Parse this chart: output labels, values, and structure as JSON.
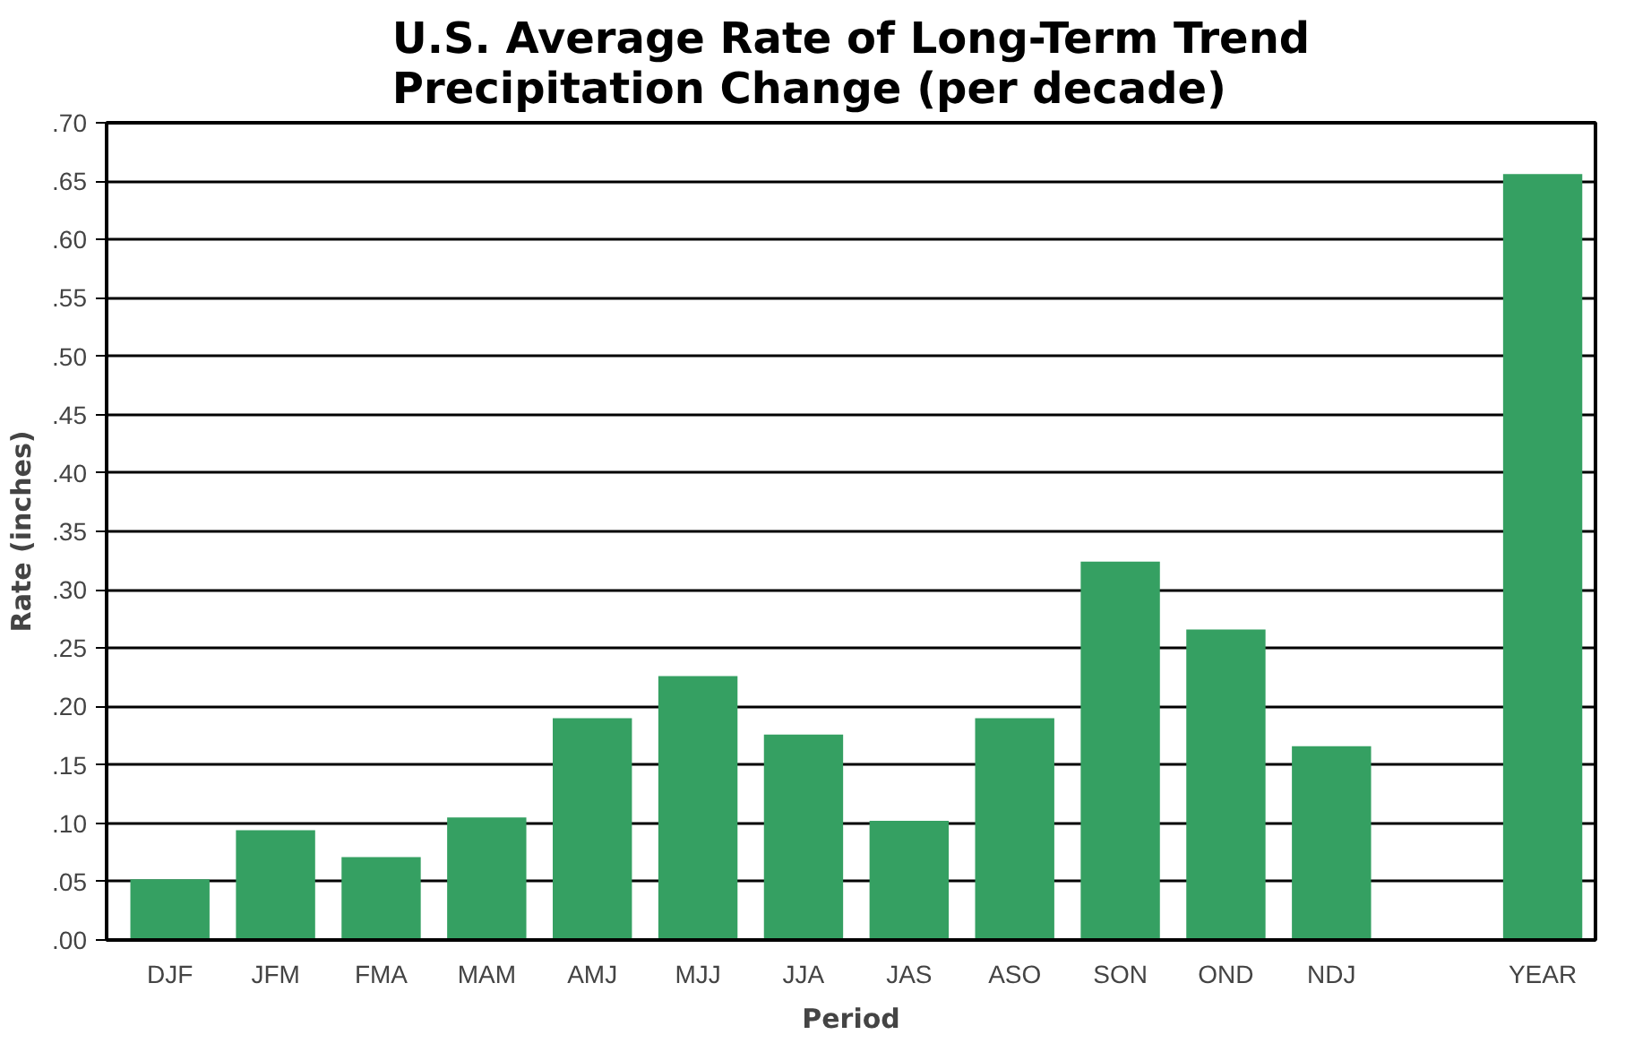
{
  "chart_data": {
    "type": "bar",
    "title": "U.S. Average Rate of Long-Term Trend Precipitation Change (per decade)",
    "xlabel": "Period",
    "ylabel": "Rate (inches)",
    "categories": [
      "DJF",
      "JFM",
      "FMA",
      "MAM",
      "AMJ",
      "MJJ",
      "JJA",
      "JAS",
      "ASO",
      "SON",
      "OND",
      "NDJ",
      null,
      "YEAR"
    ],
    "values": [
      0.052,
      0.094,
      0.071,
      0.105,
      0.19,
      0.226,
      0.176,
      0.102,
      0.19,
      0.324,
      0.266,
      0.166,
      null,
      0.656
    ],
    "color": "#35a062",
    "ylim": [
      0,
      0.7
    ],
    "yticks": [
      {
        "value": 0,
        "label": ".00"
      },
      {
        "value": 0.05,
        "label": ".05"
      },
      {
        "value": 0.1,
        "label": ".10"
      },
      {
        "value": 0.15,
        "label": ".15"
      },
      {
        "value": 0.2,
        "label": ".20"
      },
      {
        "value": 0.25,
        "label": ".25"
      },
      {
        "value": 0.3,
        "label": ".30"
      },
      {
        "value": 0.35,
        "label": ".35"
      },
      {
        "value": 0.4,
        "label": ".40"
      },
      {
        "value": 0.45,
        "label": ".45"
      },
      {
        "value": 0.5,
        "label": ".50"
      },
      {
        "value": 0.55,
        "label": ".55"
      },
      {
        "value": 0.6,
        "label": ".60"
      },
      {
        "value": 0.65,
        "label": ".65"
      },
      {
        "value": 0.7,
        "label": ".70"
      }
    ],
    "grid": "y"
  }
}
